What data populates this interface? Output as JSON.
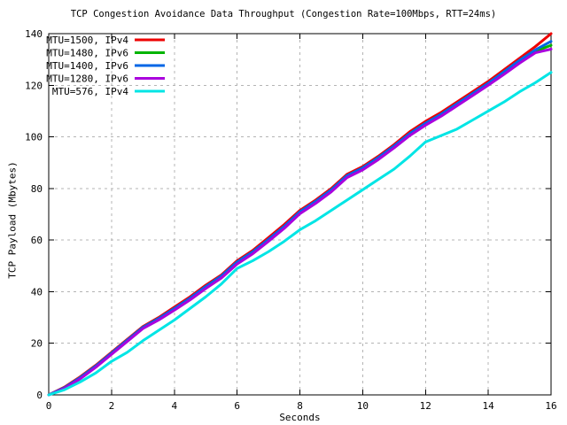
{
  "chart_data": {
    "type": "line",
    "title": "TCP Congestion Avoidance Data Throughput (Congestion Rate=100Mbps, RTT=24ms)",
    "xlabel": "Seconds",
    "ylabel": "TCP Payload (Mbytes)",
    "xlim": [
      0,
      16
    ],
    "ylim": [
      0,
      140
    ],
    "xticks": [
      0,
      2,
      4,
      6,
      8,
      10,
      12,
      14,
      16
    ],
    "yticks": [
      0,
      20,
      40,
      60,
      80,
      100,
      120,
      140
    ],
    "grid": true,
    "grid_color": "#b4b4b4",
    "axis_color": "#000000",
    "background": "#ffffff",
    "legend_position": "top-left-inside",
    "x": [
      0,
      0.5,
      1,
      1.5,
      2,
      2.5,
      3,
      3.5,
      4,
      4.5,
      5,
      5.5,
      6,
      6.5,
      7,
      7.5,
      8,
      8.5,
      9,
      9.5,
      10,
      10.5,
      11,
      11.5,
      12,
      12.5,
      13,
      13.5,
      14,
      14.5,
      15,
      15.5,
      16
    ],
    "series": [
      {
        "name": "MTU=1500, IPv4",
        "color": "#ee0000",
        "values": [
          0,
          3,
          7,
          11.5,
          16.5,
          21.5,
          26.5,
          30,
          34,
          38,
          42.5,
          46.5,
          52,
          56,
          61,
          66,
          71.5,
          75.5,
          80,
          85.5,
          88.5,
          92.5,
          97,
          102,
          106,
          109.5,
          113.5,
          117.5,
          121.5,
          126,
          130.5,
          135,
          140
        ]
      },
      {
        "name": "MTU=1480, IPv6",
        "color": "#00b400",
        "values": [
          0,
          2.7,
          6.5,
          11,
          16,
          21,
          26,
          29.3,
          33.2,
          37.2,
          41.7,
          45.8,
          51.2,
          55.2,
          60,
          65,
          70.7,
          74.7,
          79.2,
          84.7,
          87.7,
          91.7,
          96.2,
          101,
          105,
          108.5,
          112.5,
          116.5,
          120.5,
          124.8,
          129.2,
          133.2,
          135.5
        ]
      },
      {
        "name": "MTU=1400, IPv6",
        "color": "#0066e6",
        "values": [
          0,
          2.8,
          6.7,
          11.2,
          16.2,
          21.2,
          26.2,
          29.6,
          33.5,
          37.5,
          42,
          46.1,
          51.5,
          55.5,
          60.3,
          65.3,
          71,
          75,
          79.5,
          85,
          88,
          92,
          96.5,
          101.3,
          105.3,
          108.8,
          112.8,
          116.8,
          120.8,
          125.2,
          129.7,
          133.7,
          137
        ]
      },
      {
        "name": "MTU=1280, IPv6",
        "color": "#aa00dd",
        "values": [
          0,
          2.5,
          6.2,
          10.7,
          15.7,
          20.7,
          25.7,
          29,
          32.8,
          36.8,
          41.2,
          45.3,
          50.7,
          54.7,
          59.5,
          64.5,
          70.2,
          74.2,
          78.7,
          84.2,
          87.2,
          91.2,
          95.7,
          100.5,
          104.5,
          108,
          112,
          116,
          120,
          124.2,
          128.6,
          132.6,
          134
        ]
      },
      {
        "name": "MTU=576, IPv4",
        "color": "#00e5e5",
        "values": [
          0,
          2,
          5,
          8.5,
          13,
          16.5,
          21,
          25,
          29,
          33.5,
          38,
          43,
          49,
          52,
          55.5,
          59.5,
          64,
          67.5,
          71.5,
          75.5,
          79.5,
          83.5,
          87.5,
          92.5,
          98,
          100.5,
          103,
          106.5,
          110,
          113.5,
          117.5,
          121,
          125
        ]
      }
    ]
  }
}
